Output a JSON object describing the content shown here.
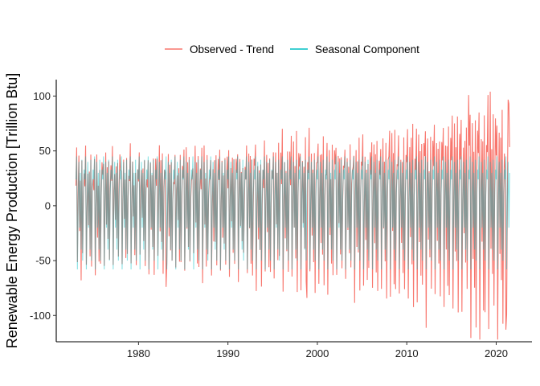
{
  "chart_data": {
    "type": "line",
    "title": "",
    "xlabel": "",
    "ylabel": "Renewable Energy Production [Trillion Btu]",
    "xlim": [
      1970.8,
      2024.0
    ],
    "ylim": [
      -124,
      115
    ],
    "x_ticks": [
      1980,
      1990,
      2000,
      2010,
      2020
    ],
    "y_ticks": [
      -100,
      -50,
      0,
      50,
      100
    ],
    "x_tick_labels": [
      "1980",
      "1990",
      "2000",
      "2010",
      "2020"
    ],
    "y_tick_labels": [
      "-100",
      "-50",
      "0",
      "50",
      "100"
    ],
    "grid": false,
    "legend_position": "top",
    "start_year": 1973.0,
    "end_year": 2021.5,
    "series": [
      {
        "name": "Observed - Trend",
        "color": "#F8766D",
        "alpha": 1.0,
        "description": "Monthly detrended renewable energy production; amplitude grows over time",
        "yearly_amplitude": [
          [
            1973,
            45
          ],
          [
            1980,
            52
          ],
          [
            1985,
            52
          ],
          [
            1990,
            55
          ],
          [
            1995,
            58
          ],
          [
            2000,
            62
          ],
          [
            2005,
            65
          ],
          [
            2010,
            75
          ],
          [
            2015,
            82
          ],
          [
            2018,
            95
          ],
          [
            2021,
            100
          ]
        ],
        "extremes": [
          {
            "x": 1973.6,
            "y": -68
          },
          {
            "x": 1983.1,
            "y": -74
          },
          {
            "x": 1998.8,
            "y": -84
          },
          {
            "x": 2016.9,
            "y": 101
          },
          {
            "x": 2019.3,
            "y": 104
          },
          {
            "x": 2021.1,
            "y": -113
          },
          {
            "x": 2021.4,
            "y": 93
          }
        ]
      },
      {
        "name": "Seasonal Component",
        "color": "#00BFC4",
        "alpha": 0.45,
        "description": "Repeating 12-month seasonal pattern",
        "monthly_pattern": [
          24,
          45,
          -58,
          5,
          40,
          -20,
          30,
          -40,
          42,
          -50,
          10,
          33
        ],
        "max": 45,
        "min": -58
      }
    ]
  }
}
